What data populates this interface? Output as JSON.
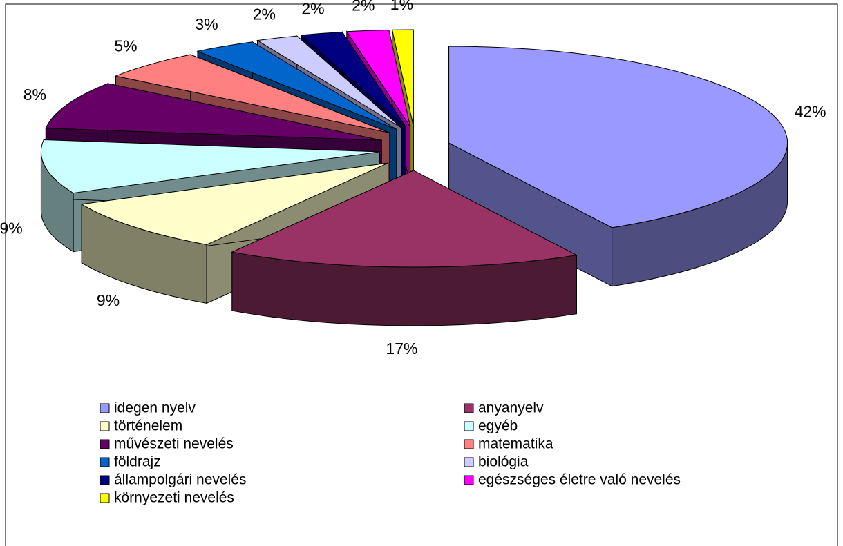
{
  "chart_data": {
    "type": "pie3d",
    "categories": [
      "idegen nyelv",
      "anyanyelv",
      "történelem",
      "egyéb",
      "művészeti nevelés",
      "matematika",
      "földrajz",
      "biológia",
      "állampolgári nevelés",
      "egészséges életre való nevelés",
      "környezeti nevelés"
    ],
    "values": [
      42,
      17,
      9,
      9,
      8,
      5,
      3,
      2,
      2,
      2,
      1
    ],
    "value_labels": [
      "42%",
      "17%",
      "9%",
      "9%",
      "8%",
      "5%",
      "3%",
      "2%",
      "2%",
      "2%",
      "1%"
    ],
    "colors": [
      "#9999ff",
      "#993366",
      "#ffffcc",
      "#ccffff",
      "#660066",
      "#ff8080",
      "#0066cc",
      "#ccccff",
      "#000080",
      "#ff00ff",
      "#ffff00"
    ],
    "legend": "bottom"
  }
}
